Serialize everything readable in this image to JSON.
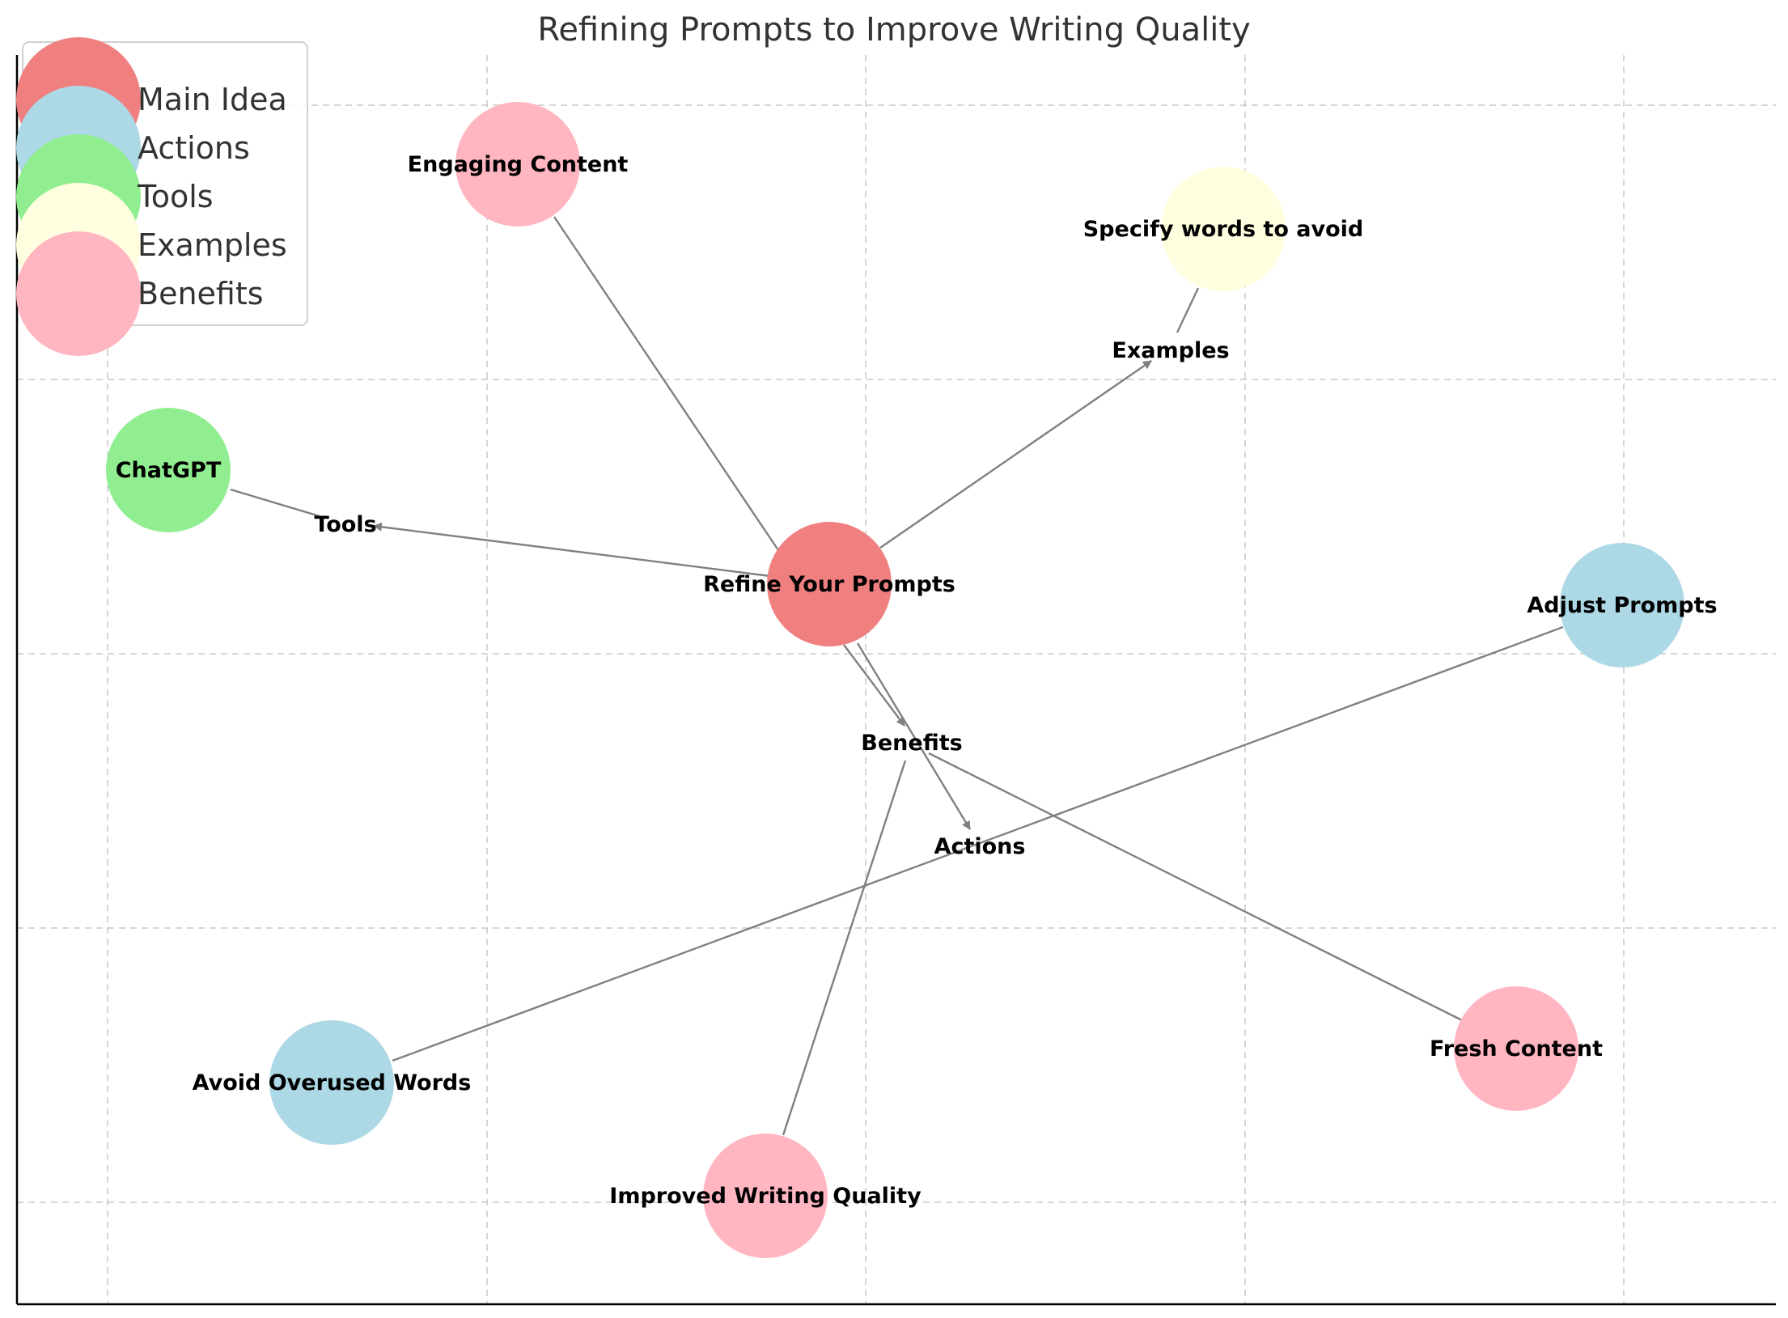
{
  "title": "Refining Prompts to Improve Writing Quality",
  "colors": {
    "main_idea": "#F08080",
    "actions": "#ADD8E6",
    "tools": "#90EE90",
    "examples": "#FFFFE0",
    "benefits": "#FFB6C1",
    "edge": "#808080"
  },
  "legend": [
    {
      "label": "Main Idea",
      "category": "main_idea"
    },
    {
      "label": "Actions",
      "category": "actions"
    },
    {
      "label": "Tools",
      "category": "tools"
    },
    {
      "label": "Examples",
      "category": "examples"
    },
    {
      "label": "Benefits",
      "category": "benefits"
    }
  ],
  "nodes": [
    {
      "id": "refine",
      "label": "Refine Your Prompts",
      "category": "main_idea"
    },
    {
      "id": "engaging",
      "label": "Engaging Content",
      "category": "benefits"
    },
    {
      "id": "specify",
      "label": "Specify words to avoid",
      "category": "examples"
    },
    {
      "id": "chatgpt",
      "label": "ChatGPT",
      "category": "tools"
    },
    {
      "id": "adjust",
      "label": "Adjust Prompts",
      "category": "actions"
    },
    {
      "id": "avoid",
      "label": "Avoid Overused Words",
      "category": "actions"
    },
    {
      "id": "improved",
      "label": "Improved Writing Quality",
      "category": "benefits"
    },
    {
      "id": "fresh",
      "label": "Fresh Content",
      "category": "benefits"
    }
  ],
  "category_labels": [
    {
      "id": "tools_lbl",
      "label": "Tools"
    },
    {
      "id": "examples_lbl",
      "label": "Examples"
    },
    {
      "id": "benefits_lbl",
      "label": "Benefits"
    },
    {
      "id": "actions_lbl",
      "label": "Actions"
    }
  ],
  "edges": [
    {
      "from": "refine",
      "to": "tools_lbl",
      "arrow": true
    },
    {
      "from": "refine",
      "to": "examples_lbl",
      "arrow": true
    },
    {
      "from": "refine",
      "to": "benefits_lbl",
      "arrow": true
    },
    {
      "from": "refine",
      "to": "actions_lbl",
      "arrow": true
    },
    {
      "from": "chatgpt",
      "to": "tools_lbl",
      "arrow": false
    },
    {
      "from": "specify",
      "to": "examples_lbl",
      "arrow": false
    },
    {
      "from": "engaging",
      "to": "refine",
      "arrow": false
    },
    {
      "from": "fresh",
      "to": "benefits_lbl",
      "arrow": false
    },
    {
      "from": "improved",
      "to": "benefits_lbl",
      "arrow": false
    },
    {
      "from": "avoid",
      "to": "adjust",
      "arrow": false
    }
  ]
}
